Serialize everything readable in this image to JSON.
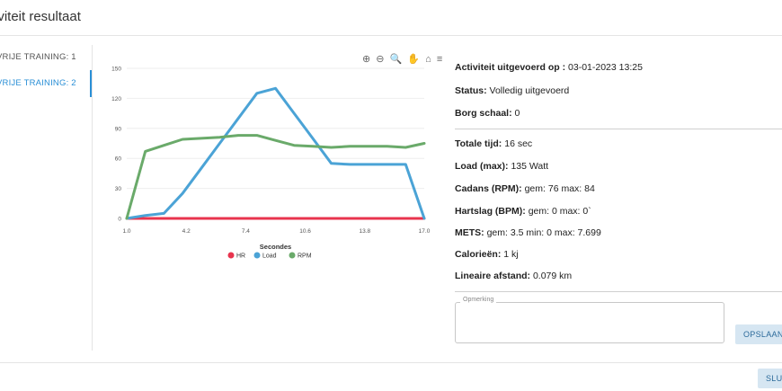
{
  "dialog": {
    "title": "iviteit resultaat"
  },
  "tabs": [
    {
      "label": "VRIJE TRAINING: 1"
    },
    {
      "label": "VRIJE TRAINING: 2"
    }
  ],
  "chart_toolbar": {
    "zoom_in": "⊕",
    "zoom_out": "⊖",
    "zoom_select": "🔍",
    "pan": "✋",
    "reset": "⌂",
    "menu": "≡"
  },
  "info": {
    "uitgevoerd_label": "Activiteit uitgevoerd op :",
    "uitgevoerd_value": "03-01-2023 13:25",
    "status_label": "Status:",
    "status_value": "Volledig uitgevoerd",
    "borg_label": "Borg schaal:",
    "borg_value": "0",
    "tijd_label": "Totale tijd:",
    "tijd_value": "16 sec",
    "load_label": "Load (max):",
    "load_value": "135 Watt",
    "cadans_label": "Cadans (RPM):",
    "cadans_value": "gem: 76 max: 84",
    "hartslag_label": "Hartslag (BPM):",
    "hartslag_value": "gem: 0 max: 0`",
    "mets_label": "METS:",
    "mets_value": "gem: 3.5 min: 0 max: 7.699",
    "calorieen_label": "Calorieën:",
    "calorieen_value": "1 kj",
    "afstand_label": "Lineaire afstand:",
    "afstand_value": "0.079 km"
  },
  "opmerking": {
    "label": "Opmerking",
    "value": ""
  },
  "buttons": {
    "save": "OPSLAAN",
    "close": "SLUI"
  },
  "colors": {
    "accent": "#2a8fd6",
    "hr": "#e8344e",
    "load": "#4ba3d6",
    "rpm": "#6aaa6a"
  },
  "chart_data": {
    "type": "line",
    "title": "",
    "xlabel": "Secondes",
    "ylabel": "",
    "x": [
      1,
      2,
      3,
      4,
      5,
      6,
      7,
      8,
      9,
      10,
      11,
      12,
      13,
      14,
      15,
      16,
      17
    ],
    "xticks": [
      "1.0",
      "4.2",
      "7.4",
      "10.6",
      "13.8",
      "17.0"
    ],
    "yticks": [
      "0",
      "30",
      "60",
      "90",
      "120",
      "150"
    ],
    "ylim": [
      0,
      150
    ],
    "xlim": [
      1,
      17
    ],
    "grid": "horizontal",
    "legend_position": "bottom",
    "series": [
      {
        "name": "HR",
        "color": "#e8344e",
        "values": [
          0,
          0,
          0,
          0,
          0,
          0,
          0,
          0,
          0,
          0,
          0,
          0,
          0,
          0,
          0,
          0,
          0
        ]
      },
      {
        "name": "Load",
        "color": "#4ba3d6",
        "values": [
          0,
          3,
          5,
          25,
          50,
          75,
          100,
          125,
          130,
          105,
          80,
          55,
          54,
          54,
          54,
          54,
          0
        ]
      },
      {
        "name": "RPM",
        "color": "#6aaa6a",
        "values": [
          0,
          67,
          73,
          79,
          80,
          81,
          83,
          83,
          78,
          73,
          72,
          71,
          72,
          72,
          72,
          71,
          75
        ]
      }
    ]
  }
}
